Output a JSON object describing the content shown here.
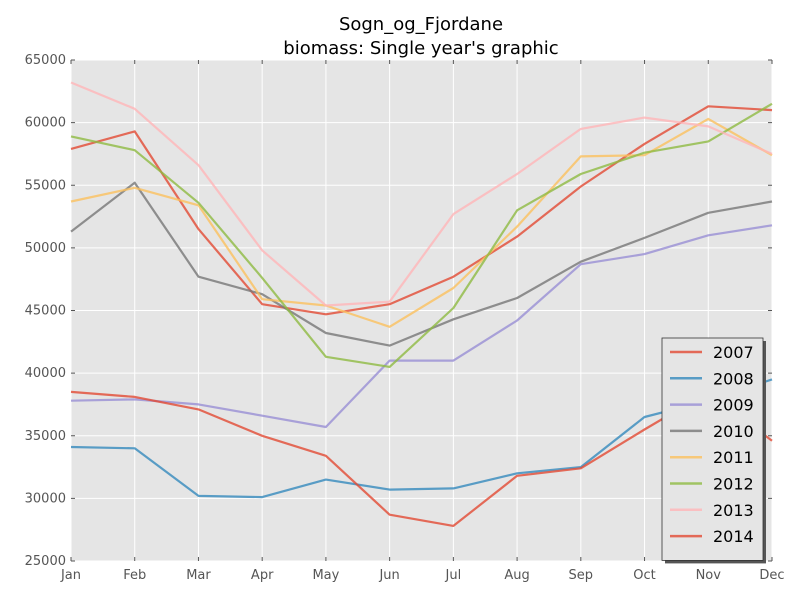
{
  "chart_data": {
    "type": "line",
    "title_line1": "Sogn_og_Fjordane",
    "title_line2": "biomass: Single year's graphic",
    "xlabel": "",
    "ylabel": "",
    "categories": [
      "Jan",
      "Feb",
      "Mar",
      "Apr",
      "May",
      "Jun",
      "Jul",
      "Aug",
      "Sep",
      "Oct",
      "Nov",
      "Dec"
    ],
    "ylim": [
      25000,
      65000
    ],
    "yticks": [
      25000,
      30000,
      35000,
      40000,
      45000,
      50000,
      55000,
      60000,
      65000
    ],
    "ytick_labels": [
      "25000",
      "30000",
      "35000",
      "40000",
      "45000",
      "50000",
      "55000",
      "60000",
      "65000"
    ],
    "grid": true,
    "legend_position": "lower-right",
    "series": [
      {
        "name": "2007",
        "color": "#E24A33",
        "values": [
          57900,
          59300,
          51500,
          45500,
          44700,
          45500,
          47700,
          50900,
          54900,
          58300,
          61300,
          61000
        ]
      },
      {
        "name": "2008",
        "color": "#348ABD",
        "values": [
          34100,
          34000,
          30200,
          30100,
          31500,
          30700,
          30800,
          32000,
          32500,
          36500,
          37800,
          39500
        ]
      },
      {
        "name": "2009",
        "color": "#988ED5",
        "values": [
          37800,
          37900,
          37500,
          36600,
          35700,
          41000,
          41000,
          44200,
          48700,
          49500,
          51000,
          51800
        ]
      },
      {
        "name": "2010",
        "color": "#777777",
        "values": [
          51300,
          55200,
          47700,
          46300,
          43200,
          42200,
          44300,
          46000,
          48900,
          50800,
          52800,
          53700
        ]
      },
      {
        "name": "2011",
        "color": "#FBC15E",
        "values": [
          53700,
          54800,
          53400,
          45900,
          45400,
          43700,
          46800,
          51700,
          57300,
          57400,
          60300,
          57400
        ]
      },
      {
        "name": "2012",
        "color": "#8EBA42",
        "values": [
          58900,
          57800,
          53600,
          47600,
          41300,
          40500,
          45200,
          53000,
          55900,
          57600,
          58500,
          61500
        ]
      },
      {
        "name": "2013",
        "color": "#FFB5B8",
        "values": [
          63200,
          61100,
          56600,
          49800,
          45400,
          45700,
          52700,
          55900,
          59500,
          60400,
          59700,
          57500
        ]
      },
      {
        "name": "2014",
        "color": "#E24A33",
        "values": [
          38500,
          38100,
          37100,
          35000,
          33400,
          28700,
          27800,
          31800,
          32400,
          35500,
          38500,
          34600
        ]
      }
    ]
  }
}
